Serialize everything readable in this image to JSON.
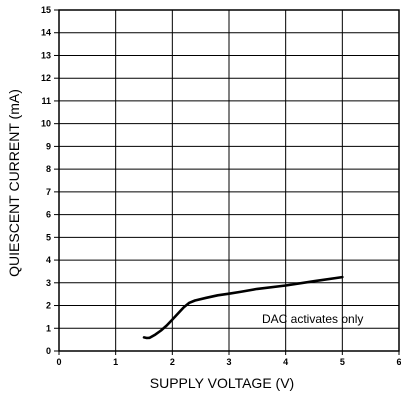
{
  "chart_data": {
    "type": "line",
    "title": "",
    "xlabel": "SUPPLY VOLTAGE (V)",
    "ylabel": "QUIESCENT CURRENT (mA)",
    "xlim": [
      0,
      6
    ],
    "ylim": [
      0,
      15
    ],
    "x_ticks": [
      "0",
      "1",
      "2",
      "3",
      "4",
      "5",
      "6"
    ],
    "y_ticks": [
      "0",
      "1",
      "2",
      "3",
      "4",
      "5",
      "6",
      "7",
      "8",
      "9",
      "10",
      "11",
      "12",
      "13",
      "14",
      "15"
    ],
    "grid": true,
    "annotation": "DAC activates only",
    "series": [
      {
        "color": "#000000",
        "x": [
          1.5,
          1.55,
          1.6,
          1.7,
          1.8,
          1.9,
          2.0,
          2.1,
          2.2,
          2.3,
          2.4,
          2.6,
          2.8,
          3.0,
          3.2,
          3.5,
          4.0,
          4.5,
          5.0
        ],
        "y": [
          0.6,
          0.57,
          0.58,
          0.72,
          0.9,
          1.12,
          1.38,
          1.65,
          1.92,
          2.12,
          2.22,
          2.34,
          2.45,
          2.52,
          2.6,
          2.73,
          2.88,
          3.07,
          3.25
        ]
      }
    ]
  }
}
